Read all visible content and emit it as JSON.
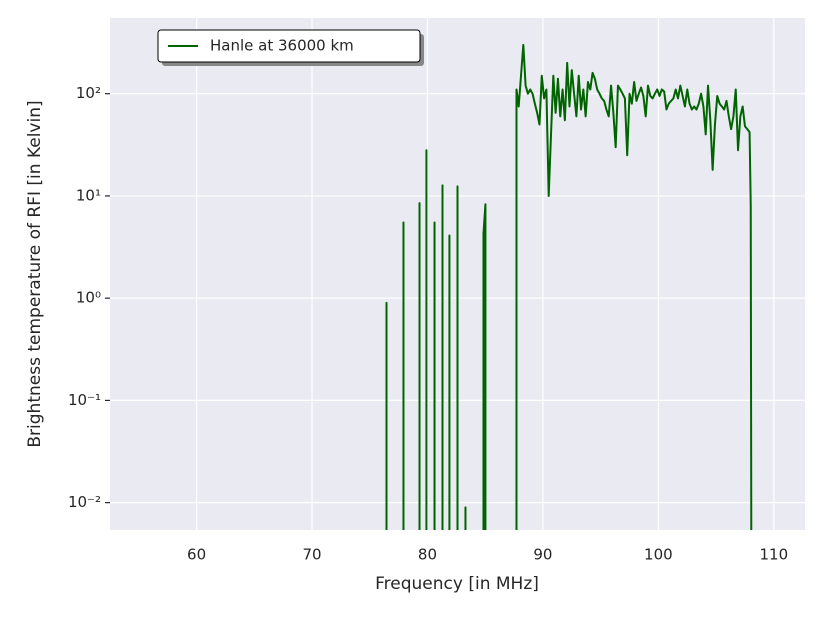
{
  "chart_data": {
    "type": "line",
    "xlabel": "Frequency [in MHz]",
    "ylabel": "Brightness temperature of RFI [in Kelvin]",
    "log_y": true,
    "grid": true,
    "legend": "upper left",
    "xlim": [
      52.5,
      112.7
    ],
    "xticks": [
      60,
      70,
      80,
      90,
      100,
      110
    ],
    "ylim": [
      0.0054,
      550
    ],
    "yticks": [
      {
        "value": 0.01,
        "label": "10⁻²"
      },
      {
        "value": 0.1,
        "label": "10⁻¹"
      },
      {
        "value": 1,
        "label": "10⁰"
      },
      {
        "value": 10,
        "label": "10¹"
      },
      {
        "value": 100,
        "label": "10²"
      }
    ],
    "x": [
      76.45,
      76.45,
      76.45,
      77.92,
      77.92,
      77.92,
      79.31,
      79.31,
      79.31,
      79.91,
      79.91,
      79.91,
      80.61,
      80.61,
      80.61,
      81.3,
      81.3,
      81.3,
      81.9,
      81.9,
      81.9,
      82.6,
      82.6,
      82.6,
      83.29,
      83.29,
      83.29,
      84.85,
      84.85,
      85.02,
      85.02,
      87.71,
      87.71,
      87.9,
      88.1,
      88.3,
      88.5,
      88.7,
      88.9,
      89.1,
      89.3,
      89.5,
      89.7,
      89.9,
      90.1,
      90.3,
      90.5,
      90.7,
      90.9,
      91.1,
      91.3,
      91.5,
      91.7,
      91.9,
      92.1,
      92.3,
      92.5,
      92.7,
      92.9,
      93.1,
      93.3,
      93.5,
      93.7,
      93.9,
      94.1,
      94.3,
      94.5,
      94.7,
      94.9,
      95.1,
      95.3,
      95.5,
      95.7,
      95.9,
      96.1,
      96.3,
      96.5,
      96.7,
      96.9,
      97.1,
      97.3,
      97.5,
      97.7,
      97.9,
      98.1,
      98.3,
      98.5,
      98.7,
      98.9,
      99.1,
      99.3,
      99.5,
      99.7,
      99.9,
      100.1,
      100.3,
      100.5,
      100.7,
      100.9,
      101.1,
      101.3,
      101.5,
      101.7,
      101.9,
      102.1,
      102.3,
      102.5,
      102.7,
      102.9,
      103.1,
      103.3,
      103.5,
      103.7,
      103.9,
      104.1,
      104.3,
      104.5,
      104.7,
      104.9,
      105.1,
      105.3,
      105.5,
      105.7,
      105.9,
      106.1,
      106.3,
      106.5,
      106.7,
      106.9,
      107.1,
      107.3,
      107.5,
      107.7,
      107.9,
      108.0,
      108.05
    ],
    "series": [
      {
        "name": "Hanle at 36000 km",
        "color": "#006400",
        "values": [
          0,
          0.9,
          0,
          0,
          5.5,
          0,
          0,
          8.5,
          0,
          0,
          28,
          0,
          0,
          5.5,
          0,
          0,
          12.7,
          0,
          0,
          4.1,
          0,
          0,
          12.4,
          0,
          0,
          0.009,
          0,
          0,
          4.3,
          8.3,
          0,
          0,
          110,
          75,
          150,
          300,
          120,
          100,
          110,
          100,
          80,
          65,
          50,
          150,
          90,
          110,
          10,
          40,
          150,
          65,
          140,
          60,
          110,
          55,
          200,
          75,
          170,
          100,
          60,
          150,
          70,
          110,
          60,
          130,
          110,
          160,
          140,
          110,
          100,
          90,
          85,
          70,
          60,
          120,
          65,
          30,
          120,
          110,
          100,
          90,
          25,
          100,
          80,
          130,
          85,
          100,
          115,
          95,
          60,
          120,
          95,
          90,
          100,
          110,
          95,
          110,
          105,
          70,
          80,
          85,
          90,
          110,
          90,
          120,
          95,
          75,
          110,
          80,
          70,
          75,
          70,
          80,
          100,
          75,
          40,
          120,
          55,
          18,
          50,
          95,
          80,
          75,
          70,
          85,
          60,
          45,
          60,
          110,
          28,
          60,
          75,
          48,
          45,
          42,
          8,
          0
        ]
      }
    ]
  }
}
